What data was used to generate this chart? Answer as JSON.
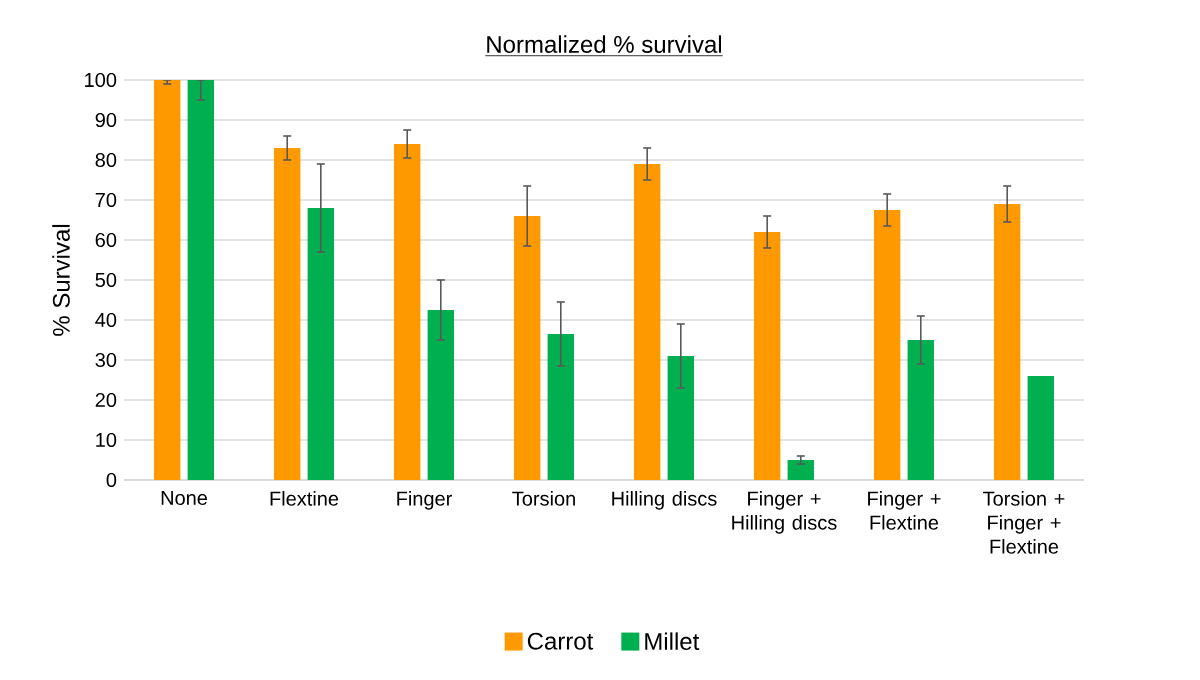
{
  "chart_data": {
    "type": "bar",
    "title": "Normalized % survival",
    "ylabel": "% Survival",
    "categories": [
      "None",
      "Flextine",
      "Finger",
      "Torsion",
      "Hilling discs",
      "Finger + Hilling discs",
      "Finger + Flextine",
      "Torsion + Finger + Flextine"
    ],
    "series": [
      {
        "name": "Carrot",
        "color": "#ff9900",
        "values": [
          100,
          83,
          84,
          66,
          79,
          62,
          67.5,
          69
        ],
        "errors": [
          [
            99,
            100
          ],
          3,
          3.5,
          7.5,
          4,
          4,
          4,
          4.5
        ]
      },
      {
        "name": "Millet",
        "color": "#00b050",
        "values": [
          100,
          68,
          42.5,
          36.5,
          31,
          5,
          35,
          26
        ],
        "errors": [
          [
            95,
            100
          ],
          11,
          7.5,
          8,
          8,
          1,
          6,
          null
        ]
      }
    ],
    "ylim": [
      0,
      100
    ],
    "yticks": [
      0,
      10,
      20,
      30,
      40,
      50,
      60,
      70,
      80,
      90,
      100
    ],
    "grid": "y",
    "legend": "bottom"
  }
}
